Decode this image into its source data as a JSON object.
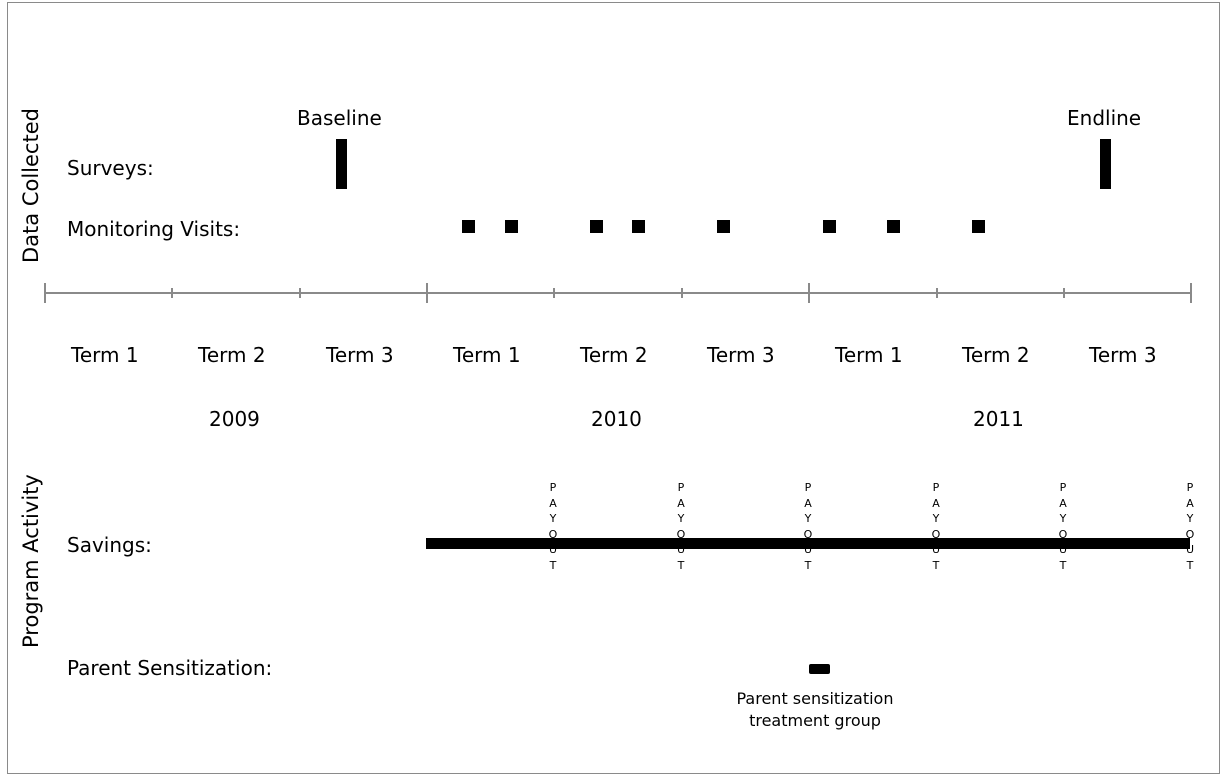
{
  "section_labels": {
    "data_collected": "Data Collected",
    "program_activity": "Program Activity"
  },
  "rows": {
    "surveys": "Surveys:",
    "monitoring": "Monitoring Visits:",
    "savings": "Savings:",
    "parent_sensitization": "Parent Sensitization:"
  },
  "markers": {
    "baseline": "Baseline",
    "endline": "Endline"
  },
  "terms": [
    "Term 1",
    "Term 2",
    "Term 3",
    "Term 1",
    "Term 2",
    "Term 3",
    "Term 1",
    "Term 2",
    "Term 3"
  ],
  "years": [
    "2009",
    "2010",
    "2011"
  ],
  "payout_letters": [
    "P",
    "A",
    "Y",
    "O",
    "U",
    "T"
  ],
  "parent_note": {
    "line1": "Parent sensitization",
    "line2": "treatment group"
  }
}
